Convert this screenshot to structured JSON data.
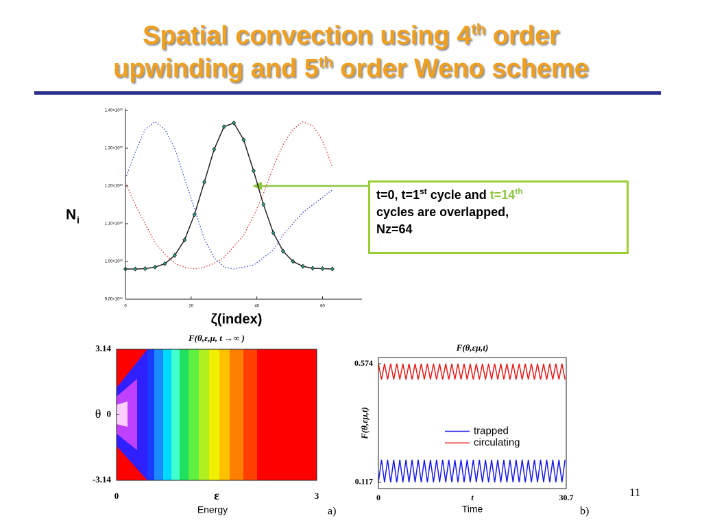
{
  "slide": {
    "title": [
      "Spatial convection using 4",
      "th",
      " order",
      "upwinding and 5",
      "th",
      " order Weno scheme"
    ],
    "callout": [
      "t=0, t=1",
      "st",
      " cycle and ",
      "t=14",
      "th",
      "cycles are overlapped,",
      "Nz=64"
    ],
    "page_number": "11"
  },
  "chart_data": [
    {
      "type": "line",
      "y_label": "N",
      "y_label_sub": "i",
      "x_label": "ζ(index)",
      "xlim": [
        0,
        72
      ],
      "xticks": [
        0,
        20,
        40,
        60
      ],
      "ylim": [
        9e+19,
        1.4e+20
      ],
      "yticks": [
        {
          "value": 9e+19,
          "label": "9.00×10¹⁹"
        },
        {
          "value": 1e+20,
          "label": "1.00×10²⁰"
        },
        {
          "value": 1.1e+20,
          "label": "1.10×10²⁰"
        },
        {
          "value": 1.2e+20,
          "label": "1.20×10²⁰"
        },
        {
          "value": 1.3e+20,
          "label": "1.30×10²⁰"
        },
        {
          "value": 1.4e+20,
          "label": "1.40×10²⁰"
        }
      ],
      "grid": false,
      "x": [
        0,
        3,
        6,
        9,
        12,
        15,
        18,
        21,
        24,
        27,
        30,
        33,
        36,
        39,
        42,
        45,
        48,
        51,
        54,
        57,
        60,
        63
      ],
      "series": [
        {
          "color": "#3344dd",
          "dash": "dotted",
          "values": [
            1.22e+20,
            1.29e+20,
            1.35e+20,
            1.37e+20,
            1.35e+20,
            1.3e+20,
            1.22e+20,
            1.14e+20,
            1.06e+20,
            1.01e+20,
            9.85e+19,
            9.8e+19,
            9.85e+19,
            9.9e+19,
            1.01e+20,
            1.03e+20,
            1.07e+20,
            1.1e+20,
            1.13e+20,
            1.15e+20,
            1.17e+20,
            1.19e+20
          ]
        },
        {
          "color": "#dd3333",
          "dash": "dotted",
          "values": [
            1.21e+20,
            1.15e+20,
            1.1e+20,
            1.05e+20,
            1.02e+20,
            9.95e+19,
            9.85e+19,
            9.8e+19,
            9.85e+19,
            9.95e+19,
            1.01e+20,
            1.04e+20,
            1.07e+20,
            1.12e+20,
            1.18e+20,
            1.25e+20,
            1.31e+20,
            1.35e+20,
            1.37e+20,
            1.36e+20,
            1.32e+20,
            1.25e+20
          ]
        },
        {
          "color": "#222222",
          "dash": "solid",
          "values": [
            9.8e+19,
            9.8e+19,
            9.81e+19,
            9.85e+19,
            9.94e+19,
            1.016e+20,
            1.057e+20,
            1.124e+20,
            1.21e+20,
            1.297e+20,
            1.357e+20,
            1.367e+20,
            1.322e+20,
            1.24e+20,
            1.151e+20,
            1.076e+20,
            1.027e+20,
            1e+20,
            9.87e+19,
            9.82e+19,
            9.81e+19,
            9.8e+19
          ]
        },
        {
          "color": "#2aa58a",
          "marker": "diamond",
          "values": [
            9.8e+19,
            9.8e+19,
            9.81e+19,
            9.85e+19,
            9.94e+19,
            1.016e+20,
            1.057e+20,
            1.124e+20,
            1.21e+20,
            1.297e+20,
            1.357e+20,
            1.367e+20,
            1.322e+20,
            1.24e+20,
            1.151e+20,
            1.076e+20,
            1.027e+20,
            1e+20,
            9.87e+19,
            9.82e+19,
            9.81e+19,
            9.8e+19
          ]
        }
      ]
    },
    {
      "type": "heatmap",
      "title": "F(θ,ε,μ, t →∞ )",
      "y_label": "θ",
      "x_symbol": "ε",
      "x_label": "Energy",
      "panel": "a)",
      "xlim": [
        0,
        3
      ],
      "xticks": [
        0,
        3
      ],
      "ylim": [
        -3.14,
        3.14
      ],
      "yticks": [
        3.14,
        0,
        -3.14
      ]
    },
    {
      "type": "line",
      "title": "F(θ,εμ,t)",
      "y_label": "F(θ,εμ,t)",
      "x_symbol": "t",
      "x_label": "Time",
      "panel": "b)",
      "xlim": [
        0,
        30.7
      ],
      "xticks": [
        0,
        30.7
      ],
      "ylim": [
        0.093,
        0.598
      ],
      "yticks": [
        0.117,
        0.574
      ],
      "legend": "center",
      "x": [
        0,
        0.5,
        1,
        1.5,
        2,
        2.5,
        3,
        3.5,
        4,
        4.5,
        5,
        5.5,
        6,
        6.5,
        7,
        7.5,
        8,
        8.5,
        9,
        9.5,
        10,
        10.5,
        11,
        11.5,
        12,
        12.5,
        13,
        13.5,
        14,
        14.5,
        15,
        15.5,
        16,
        16.5,
        17,
        17.5,
        18,
        18.5,
        19,
        19.5,
        20,
        20.5,
        21,
        21.5,
        22,
        22.5,
        23,
        23.5,
        24,
        24.5,
        25,
        25.5,
        26,
        26.5,
        27,
        27.5,
        28,
        28.5,
        29,
        29.5,
        30,
        30.5
      ],
      "series": [
        {
          "name": "trapped",
          "color": "#1a1ae6",
          "values": [
            0.117,
            0.204,
            0.117,
            0.204,
            0.117,
            0.204,
            0.117,
            0.204,
            0.117,
            0.204,
            0.117,
            0.204,
            0.117,
            0.204,
            0.117,
            0.204,
            0.117,
            0.204,
            0.117,
            0.204,
            0.117,
            0.204,
            0.117,
            0.204,
            0.117,
            0.204,
            0.117,
            0.204,
            0.117,
            0.204,
            0.117,
            0.204,
            0.117,
            0.204,
            0.117,
            0.204,
            0.117,
            0.204,
            0.117,
            0.204,
            0.117,
            0.204,
            0.117,
            0.204,
            0.117,
            0.204,
            0.117,
            0.204,
            0.117,
            0.204,
            0.117,
            0.204,
            0.117,
            0.204,
            0.117,
            0.204,
            0.117,
            0.204,
            0.117,
            0.204,
            0.117,
            0.204
          ]
        },
        {
          "name": "circulating",
          "color": "#e61a1a",
          "values": [
            0.574,
            0.513,
            0.574,
            0.513,
            0.574,
            0.513,
            0.574,
            0.513,
            0.574,
            0.513,
            0.574,
            0.513,
            0.574,
            0.513,
            0.574,
            0.513,
            0.574,
            0.513,
            0.574,
            0.513,
            0.574,
            0.513,
            0.574,
            0.513,
            0.574,
            0.513,
            0.574,
            0.513,
            0.574,
            0.513,
            0.574,
            0.513,
            0.574,
            0.513,
            0.574,
            0.513,
            0.574,
            0.513,
            0.574,
            0.513,
            0.574,
            0.513,
            0.574,
            0.513,
            0.574,
            0.513,
            0.574,
            0.513,
            0.574,
            0.513,
            0.574,
            0.513,
            0.574,
            0.513,
            0.574,
            0.513,
            0.574,
            0.513,
            0.574,
            0.513,
            0.574,
            0.513
          ]
        }
      ]
    }
  ]
}
